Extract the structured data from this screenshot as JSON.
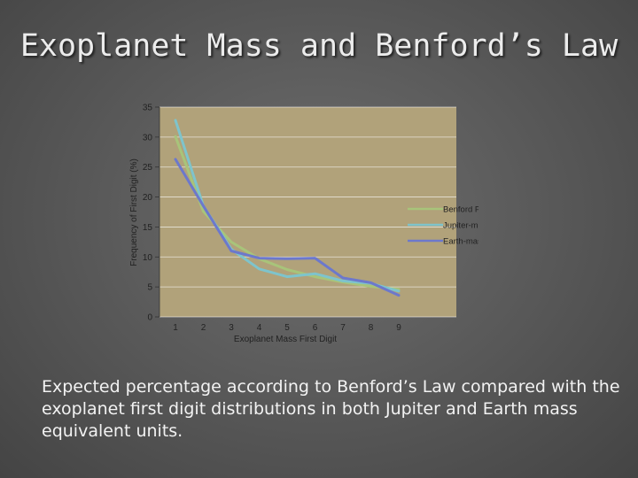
{
  "slide": {
    "title": "Exoplanet Mass and Benford’s Law",
    "caption": "Expected percentage according to Benford’s Law compared with the exoplanet first digit distributions in both Jupiter and Earth mass equivalent units."
  },
  "chart_data": {
    "type": "line",
    "title": "",
    "xlabel": "Exoplanet Mass First Digit",
    "ylabel": "Frequency of First Digit (%)",
    "x": [
      1,
      2,
      3,
      4,
      5,
      6,
      7,
      8,
      9
    ],
    "x_ticks": [
      "1",
      "2",
      "3",
      "4",
      "5",
      "6",
      "7",
      "8",
      "9"
    ],
    "y_ticks": [
      "0",
      "5",
      "10",
      "15",
      "20",
      "25",
      "30",
      "35"
    ],
    "ylim": [
      0,
      35
    ],
    "grid": true,
    "legend_position": "right",
    "plot_background": "#b1a27a",
    "series": [
      {
        "name": "Benford P(d)",
        "color": "#a8c47a",
        "values": [
          30.1,
          17.6,
          12.5,
          9.7,
          7.9,
          6.7,
          5.8,
          5.1,
          4.6
        ]
      },
      {
        "name": "Jupiter-mass",
        "color": "#7ec4cc",
        "values": [
          32.8,
          18.5,
          11.3,
          8.0,
          6.7,
          7.2,
          6.0,
          5.6,
          4.3
        ]
      },
      {
        "name": "Earth-mass",
        "color": "#6c78cc",
        "values": [
          26.3,
          18.5,
          11.0,
          9.8,
          9.7,
          9.8,
          6.5,
          5.7,
          3.6
        ]
      }
    ]
  }
}
